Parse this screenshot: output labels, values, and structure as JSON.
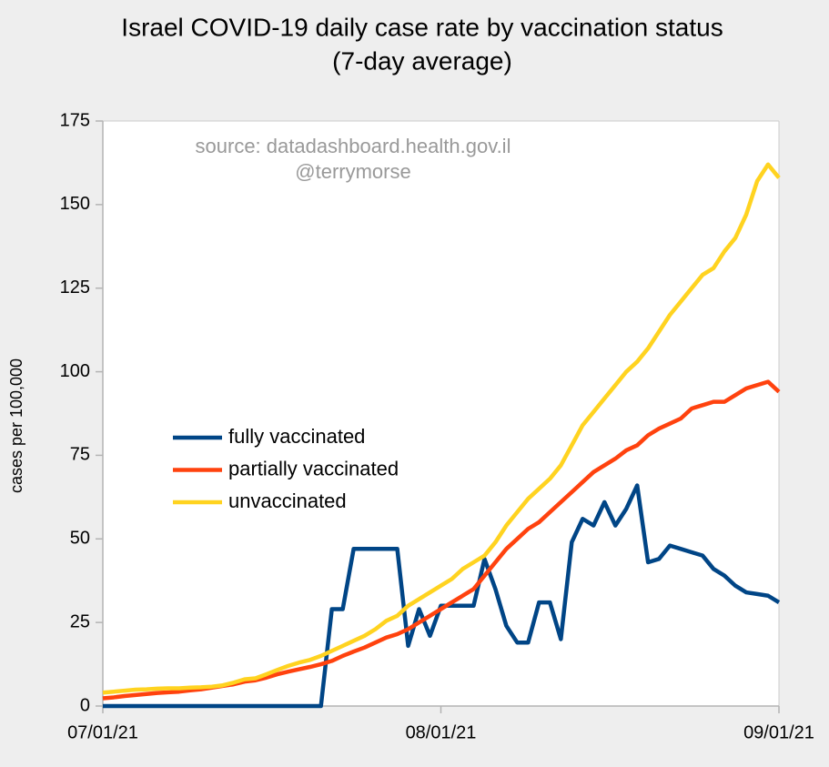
{
  "chart_data": {
    "type": "line",
    "title": "Israel COVID-19 daily case rate by vaccination status",
    "subtitle": "(7-day average)",
    "y_label": "cases per 100,000",
    "annotations": [
      "source: datadashboard.health.gov.il",
      "@terrymorse"
    ],
    "legend": "center-left",
    "grid": false,
    "x": [
      "2021-07-01",
      "2021-07-02",
      "2021-07-03",
      "2021-07-04",
      "2021-07-05",
      "2021-07-06",
      "2021-07-07",
      "2021-07-08",
      "2021-07-09",
      "2021-07-10",
      "2021-07-11",
      "2021-07-12",
      "2021-07-13",
      "2021-07-14",
      "2021-07-15",
      "2021-07-16",
      "2021-07-17",
      "2021-07-18",
      "2021-07-19",
      "2021-07-20",
      "2021-07-21",
      "2021-07-22",
      "2021-07-23",
      "2021-07-24",
      "2021-07-25",
      "2021-07-26",
      "2021-07-27",
      "2021-07-28",
      "2021-07-29",
      "2021-07-30",
      "2021-07-31",
      "2021-08-01",
      "2021-08-02",
      "2021-08-03",
      "2021-08-04",
      "2021-08-05",
      "2021-08-06",
      "2021-08-07",
      "2021-08-08",
      "2021-08-09",
      "2021-08-10",
      "2021-08-11",
      "2021-08-12",
      "2021-08-13",
      "2021-08-14",
      "2021-08-15",
      "2021-08-16",
      "2021-08-17",
      "2021-08-18",
      "2021-08-19",
      "2021-08-20",
      "2021-08-21",
      "2021-08-22",
      "2021-08-23",
      "2021-08-24",
      "2021-08-25",
      "2021-08-26",
      "2021-08-27",
      "2021-08-28",
      "2021-08-29",
      "2021-08-30",
      "2021-08-31",
      "2021-09-01"
    ],
    "series": [
      {
        "name": "fully vaccinated",
        "color": "#004586",
        "values": [
          0,
          0,
          0,
          0,
          0,
          0,
          0,
          0,
          0,
          0,
          0,
          0,
          0,
          0,
          0,
          0,
          0,
          0,
          0,
          0,
          0,
          29,
          29,
          47,
          47,
          47,
          47,
          47,
          18,
          29,
          21,
          30,
          30,
          30,
          30,
          44,
          35,
          24,
          19,
          19,
          31,
          31,
          20,
          49,
          56,
          54,
          61,
          54,
          59,
          66,
          43,
          44,
          48,
          47,
          46,
          45,
          41,
          39,
          36,
          34,
          33.5,
          33,
          31
        ]
      },
      {
        "name": "partially vaccinated",
        "color": "#ff420e",
        "values": [
          2.3,
          2.6,
          3,
          3.3,
          3.6,
          3.9,
          4.1,
          4.3,
          4.7,
          5,
          5.5,
          6,
          6.5,
          7.3,
          7.7,
          8.5,
          9.5,
          10.3,
          11,
          11.7,
          12.5,
          13.5,
          15,
          16.3,
          17.5,
          19,
          20.5,
          21.5,
          23,
          25,
          27,
          29,
          31,
          33,
          35,
          39,
          43,
          47,
          50,
          53,
          55,
          58,
          61,
          64,
          67,
          70,
          72,
          74,
          76.5,
          78,
          81,
          83,
          84.5,
          86,
          89,
          90,
          91,
          91,
          93,
          95,
          96,
          97,
          94
        ]
      },
      {
        "name": "unvaccinated",
        "color": "#ffd320",
        "values": [
          4,
          4.3,
          4.6,
          4.9,
          5,
          5.2,
          5.3,
          5.3,
          5.5,
          5.6,
          5.8,
          6.2,
          7,
          8,
          8.3,
          9.5,
          10.8,
          12,
          13,
          13.8,
          15,
          16.5,
          18,
          19.5,
          21,
          23,
          25.5,
          27,
          30,
          32,
          34,
          36,
          38,
          41,
          43,
          45,
          49,
          54,
          58,
          62,
          65,
          68,
          72,
          78,
          84,
          88,
          92,
          96,
          100,
          103,
          107,
          112,
          117,
          121,
          125,
          129,
          131,
          136,
          140,
          147,
          157,
          162,
          158
        ]
      }
    ],
    "xlim": [
      "2021-07-01",
      "2021-09-01"
    ],
    "xticks": [
      {
        "value": "2021-07-01",
        "label": "07/01/21"
      },
      {
        "value": "2021-08-01",
        "label": "08/01/21"
      },
      {
        "value": "2021-09-01",
        "label": "09/01/21"
      }
    ],
    "ylim": [
      0,
      175
    ],
    "yticks": [
      0,
      25,
      50,
      75,
      100,
      125,
      150,
      175
    ]
  }
}
